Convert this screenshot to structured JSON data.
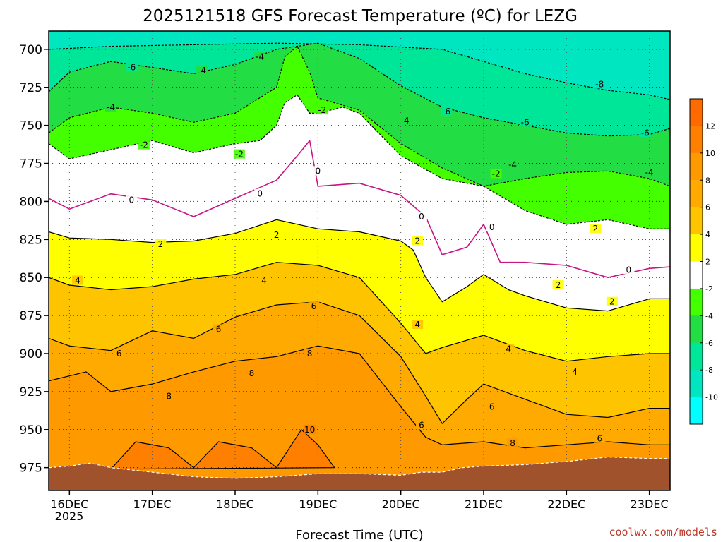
{
  "title": "2025121518 GFS Forecast Temperature (ºC) for LEZG",
  "credit": "coolwx.com/models",
  "chart_data": {
    "type": "filled-contour",
    "title": "2025121518 GFS Forecast Temperature (ºC) for LEZG",
    "xlabel": "Forecast Time (UTC)",
    "ylabel": "",
    "x_ticks": [
      "16DEC",
      "17DEC",
      "18DEC",
      "19DEC",
      "20DEC",
      "21DEC",
      "22DEC",
      "23DEC"
    ],
    "x_year": "2025",
    "xlim_days": [
      15.75,
      23.25
    ],
    "y_ticks": [
      700,
      725,
      750,
      775,
      800,
      825,
      850,
      875,
      900,
      925,
      950,
      975
    ],
    "ylim_hpa": [
      688,
      990
    ],
    "colorbar_labels": [
      12,
      10,
      8,
      6,
      4,
      2,
      -2,
      -4,
      -6,
      -8,
      -10
    ],
    "color_bins": [
      {
        "range": [
          12,
          14
        ],
        "color": "#ff6a00"
      },
      {
        "range": [
          10,
          12
        ],
        "color": "#ff8000"
      },
      {
        "range": [
          8,
          10
        ],
        "color": "#ff9900"
      },
      {
        "range": [
          6,
          8
        ],
        "color": "#ffaa00"
      },
      {
        "range": [
          4,
          6
        ],
        "color": "#ffc400"
      },
      {
        "range": [
          2,
          4
        ],
        "color": "#ffff00"
      },
      {
        "range": [
          -2,
          2
        ],
        "color": "#ffffff"
      },
      {
        "range": [
          -4,
          -2
        ],
        "color": "#44ff00"
      },
      {
        "range": [
          -6,
          -4
        ],
        "color": "#22dd44"
      },
      {
        "range": [
          -8,
          -6
        ],
        "color": "#00e699"
      },
      {
        "range": [
          -10,
          -8
        ],
        "color": "#00e6c0"
      },
      {
        "range": [
          -12,
          -10
        ],
        "color": "#00ffff"
      }
    ],
    "terrain_color": "#a0522d",
    "freezing_line_color": "#c71585",
    "contours": [
      {
        "level": -8,
        "style": "dashed",
        "points": [
          [
            15.75,
            700
          ],
          [
            16.5,
            698
          ],
          [
            17.5,
            697
          ],
          [
            18.5,
            696
          ],
          [
            19.5,
            697
          ],
          [
            20.5,
            700
          ],
          [
            21,
            708
          ],
          [
            21.5,
            716
          ],
          [
            22,
            722
          ],
          [
            22.5,
            727
          ],
          [
            23,
            730
          ],
          [
            23.25,
            733
          ]
        ]
      },
      {
        "level": -6,
        "style": "dashed",
        "points": [
          [
            15.75,
            728
          ],
          [
            16,
            715
          ],
          [
            16.5,
            708
          ],
          [
            17,
            712
          ],
          [
            17.5,
            716
          ],
          [
            18,
            710
          ],
          [
            18.5,
            700
          ],
          [
            19,
            696
          ],
          [
            19.5,
            706
          ],
          [
            20,
            724
          ],
          [
            20.5,
            738
          ],
          [
            21,
            745
          ],
          [
            21.5,
            750
          ],
          [
            22,
            755
          ],
          [
            22.5,
            757
          ],
          [
            23,
            756
          ],
          [
            23.25,
            752
          ]
        ]
      },
      {
        "level": -4,
        "style": "dashed",
        "points": [
          [
            15.75,
            755
          ],
          [
            16,
            745
          ],
          [
            16.5,
            738
          ],
          [
            17,
            742
          ],
          [
            17.5,
            748
          ],
          [
            18,
            742
          ],
          [
            18.5,
            725
          ],
          [
            18.6,
            705
          ],
          [
            18.75,
            698
          ],
          [
            18.9,
            715
          ],
          [
            19,
            732
          ],
          [
            19.5,
            740
          ],
          [
            20,
            762
          ],
          [
            20.5,
            778
          ],
          [
            21,
            790
          ],
          [
            21.5,
            785
          ],
          [
            22,
            781
          ],
          [
            22.5,
            780
          ],
          [
            23,
            785
          ],
          [
            23.25,
            790
          ]
        ]
      },
      {
        "level": -2,
        "style": "dashed",
        "points": [
          [
            15.75,
            762
          ],
          [
            16,
            772
          ],
          [
            16.5,
            766
          ],
          [
            17,
            760
          ],
          [
            17.5,
            768
          ],
          [
            18,
            762
          ],
          [
            18.3,
            760
          ],
          [
            18.5,
            750
          ],
          [
            18.6,
            735
          ],
          [
            18.75,
            730
          ],
          [
            18.9,
            742
          ],
          [
            19,
            742
          ],
          [
            19.3,
            738
          ],
          [
            19.5,
            742
          ],
          [
            20,
            770
          ],
          [
            20.5,
            785
          ],
          [
            21,
            790
          ],
          [
            21.5,
            806
          ],
          [
            22,
            815
          ],
          [
            22.5,
            812
          ],
          [
            23,
            818
          ],
          [
            23.25,
            818
          ]
        ]
      },
      {
        "level": 0,
        "style": "freezing",
        "points": [
          [
            15.75,
            798
          ],
          [
            16,
            805
          ],
          [
            16.5,
            795
          ],
          [
            17,
            799
          ],
          [
            17.5,
            810
          ],
          [
            18,
            798
          ],
          [
            18.5,
            786
          ],
          [
            18.75,
            770
          ],
          [
            18.9,
            760
          ],
          [
            19,
            790
          ],
          [
            19.5,
            788
          ],
          [
            20,
            796
          ],
          [
            20.3,
            810
          ],
          [
            20.5,
            835
          ],
          [
            20.8,
            830
          ],
          [
            21,
            815
          ],
          [
            21.2,
            840
          ],
          [
            21.5,
            840
          ],
          [
            22,
            842
          ],
          [
            22.5,
            850
          ],
          [
            23,
            844
          ],
          [
            23.25,
            843
          ]
        ]
      },
      {
        "level": 2,
        "style": "solid",
        "points": [
          [
            15.75,
            820
          ],
          [
            16,
            824
          ],
          [
            16.5,
            825
          ],
          [
            17,
            827
          ],
          [
            17.5,
            826
          ],
          [
            18,
            821
          ],
          [
            18.5,
            812
          ],
          [
            19,
            818
          ],
          [
            19.5,
            820
          ],
          [
            20,
            826
          ],
          [
            20.15,
            832
          ],
          [
            20.3,
            850
          ],
          [
            20.5,
            866
          ],
          [
            20.8,
            856
          ],
          [
            21,
            848
          ],
          [
            21.3,
            858
          ],
          [
            21.5,
            862
          ],
          [
            22,
            870
          ],
          [
            22.5,
            872
          ],
          [
            23,
            864
          ],
          [
            23.25,
            864
          ]
        ]
      },
      {
        "level": 4,
        "style": "solid",
        "points": [
          [
            15.75,
            850
          ],
          [
            16,
            855
          ],
          [
            16.5,
            858
          ],
          [
            17,
            856
          ],
          [
            17.5,
            851
          ],
          [
            18,
            848
          ],
          [
            18.5,
            840
          ],
          [
            19,
            842
          ],
          [
            19.5,
            850
          ],
          [
            20,
            880
          ],
          [
            20.3,
            900
          ],
          [
            20.5,
            896
          ],
          [
            21,
            888
          ],
          [
            21.5,
            898
          ],
          [
            22,
            905
          ],
          [
            22.5,
            902
          ],
          [
            23,
            900
          ],
          [
            23.25,
            900
          ]
        ]
      },
      {
        "level": 6,
        "style": "solid",
        "points": [
          [
            15.75,
            890
          ],
          [
            16,
            895
          ],
          [
            16.5,
            898
          ],
          [
            17,
            885
          ],
          [
            17.5,
            890
          ],
          [
            18,
            876
          ],
          [
            18.5,
            868
          ],
          [
            19,
            866
          ],
          [
            19.5,
            875
          ],
          [
            20,
            902
          ],
          [
            20.3,
            928
          ],
          [
            20.5,
            946
          ],
          [
            20.8,
            930
          ],
          [
            21,
            920
          ],
          [
            21.5,
            930
          ],
          [
            22,
            940
          ],
          [
            22.5,
            942
          ],
          [
            23,
            936
          ],
          [
            23.25,
            936
          ]
        ]
      },
      {
        "level": 8,
        "style": "solid",
        "points": [
          [
            15.75,
            918
          ],
          [
            16.2,
            912
          ],
          [
            16.5,
            925
          ],
          [
            17,
            920
          ],
          [
            17.5,
            912
          ],
          [
            18,
            905
          ],
          [
            18.5,
            902
          ],
          [
            19,
            895
          ],
          [
            19.5,
            900
          ],
          [
            20,
            935
          ],
          [
            20.3,
            955
          ],
          [
            20.5,
            960
          ],
          [
            21,
            958
          ],
          [
            21.5,
            962
          ],
          [
            22,
            960
          ],
          [
            22.5,
            958
          ],
          [
            23,
            960
          ],
          [
            23.25,
            960
          ]
        ]
      },
      {
        "level": 10,
        "style": "solid",
        "points": [
          [
            16.5,
            976
          ],
          [
            16.8,
            958
          ],
          [
            17.2,
            962
          ],
          [
            17.5,
            975
          ],
          [
            17.8,
            958
          ],
          [
            18.2,
            962
          ],
          [
            18.5,
            975
          ],
          [
            18.8,
            950
          ],
          [
            19,
            960
          ],
          [
            19.2,
            975
          ]
        ]
      }
    ],
    "contour_labels": [
      {
        "level": -6,
        "text": "-6",
        "t": 16.75,
        "p": 712
      },
      {
        "level": -4,
        "text": "-4",
        "t": 17.6,
        "p": 714
      },
      {
        "level": -4,
        "text": "-4",
        "t": 18.3,
        "p": 705
      },
      {
        "level": -4,
        "text": "-4",
        "t": 16.5,
        "p": 738
      },
      {
        "level": -2,
        "text": "-2",
        "t": 19.05,
        "p": 740
      },
      {
        "level": -6,
        "text": "-6",
        "t": 20.55,
        "p": 741
      },
      {
        "level": -8,
        "text": "-8",
        "t": 22.4,
        "p": 723
      },
      {
        "level": -6,
        "text": "-6",
        "t": 21.5,
        "p": 748
      },
      {
        "level": -4,
        "text": "-4",
        "t": 20.05,
        "p": 747
      },
      {
        "level": -6,
        "text": "-6",
        "t": 22.95,
        "p": 755
      },
      {
        "level": -2,
        "text": "-2",
        "t": 16.9,
        "p": 763
      },
      {
        "level": -2,
        "text": "-2",
        "t": 18.05,
        "p": 769
      },
      {
        "level": 0,
        "text": "0",
        "t": 19.0,
        "p": 780
      },
      {
        "level": -4,
        "text": "-4",
        "t": 21.35,
        "p": 776
      },
      {
        "level": -2,
        "text": "-2",
        "t": 21.15,
        "p": 782
      },
      {
        "level": -4,
        "text": "-4",
        "t": 23.0,
        "p": 781
      },
      {
        "level": 0,
        "text": "0",
        "t": 18.3,
        "p": 795
      },
      {
        "level": 0,
        "text": "0",
        "t": 16.75,
        "p": 799
      },
      {
        "level": 0,
        "text": "0",
        "t": 20.25,
        "p": 810
      },
      {
        "level": 0,
        "text": "0",
        "t": 21.1,
        "p": 817
      },
      {
        "level": 2,
        "text": "2",
        "t": 22.35,
        "p": 818
      },
      {
        "level": 2,
        "text": "2",
        "t": 18.5,
        "p": 822
      },
      {
        "level": 2,
        "text": "2",
        "t": 17.1,
        "p": 828
      },
      {
        "level": 2,
        "text": "2",
        "t": 20.2,
        "p": 826
      },
      {
        "level": 0,
        "text": "0",
        "t": 22.75,
        "p": 845
      },
      {
        "level": 4,
        "text": "4",
        "t": 16.1,
        "p": 852
      },
      {
        "level": 4,
        "text": "4",
        "t": 18.35,
        "p": 852
      },
      {
        "level": 2,
        "text": "2",
        "t": 21.9,
        "p": 855
      },
      {
        "level": 6,
        "text": "6",
        "t": 18.95,
        "p": 869
      },
      {
        "level": 2,
        "text": "2",
        "t": 22.55,
        "p": 866
      },
      {
        "level": 4,
        "text": "4",
        "t": 20.2,
        "p": 881
      },
      {
        "level": 6,
        "text": "6",
        "t": 17.8,
        "p": 884
      },
      {
        "level": 4,
        "text": "4",
        "t": 21.3,
        "p": 897
      },
      {
        "level": 6,
        "text": "6",
        "t": 16.6,
        "p": 900
      },
      {
        "level": 8,
        "text": "8",
        "t": 18.9,
        "p": 900
      },
      {
        "level": 4,
        "text": "4",
        "t": 22.1,
        "p": 912
      },
      {
        "level": 8,
        "text": "8",
        "t": 18.2,
        "p": 913
      },
      {
        "level": 8,
        "text": "8",
        "t": 17.2,
        "p": 928
      },
      {
        "level": 6,
        "text": "6",
        "t": 21.1,
        "p": 935
      },
      {
        "level": 6,
        "text": "6",
        "t": 20.25,
        "p": 947
      },
      {
        "level": 10,
        "text": "10",
        "t": 18.9,
        "p": 950
      },
      {
        "level": 6,
        "text": "6",
        "t": 22.4,
        "p": 956
      },
      {
        "level": 8,
        "text": "8",
        "t": 21.35,
        "p": 959
      }
    ],
    "terrain_surface": [
      [
        15.75,
        975
      ],
      [
        16,
        974
      ],
      [
        16.25,
        972
      ],
      [
        16.5,
        975
      ],
      [
        17,
        978
      ],
      [
        17.5,
        981
      ],
      [
        18,
        982
      ],
      [
        18.5,
        981
      ],
      [
        19,
        979
      ],
      [
        19.5,
        979
      ],
      [
        20,
        980
      ],
      [
        20.25,
        978
      ],
      [
        20.5,
        978
      ],
      [
        20.75,
        975
      ],
      [
        21,
        974
      ],
      [
        21.5,
        973
      ],
      [
        22,
        971
      ],
      [
        22.5,
        968
      ],
      [
        23,
        969
      ],
      [
        23.25,
        969
      ]
    ]
  }
}
